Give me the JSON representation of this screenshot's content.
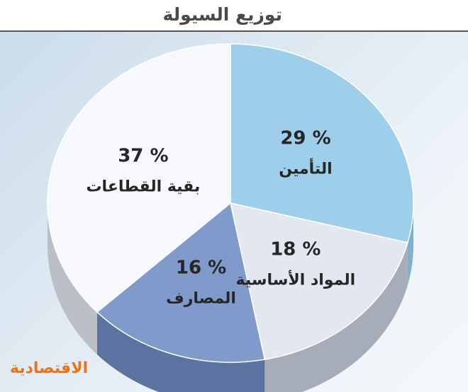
{
  "header": {
    "title": "توزيع السيولة"
  },
  "brand": {
    "name": "الاقتصادية",
    "color": "#e9731d"
  },
  "chart_data": {
    "type": "pie",
    "style": "3d",
    "title": "توزيع السيولة",
    "start_position": "top",
    "direction": "clockwise",
    "slices": [
      {
        "label": "التأمين",
        "value": 29,
        "value_label": "29 %",
        "color": "#9dcfea",
        "side_color": "#7fb0cd"
      },
      {
        "label": "المواد الأساسية",
        "value": 18,
        "value_label": "18 %",
        "color": "#e3e7ef",
        "side_color": "#a7adb8"
      },
      {
        "label": "المصارف",
        "value": 16,
        "value_label": "16 %",
        "color": "#7f9acb",
        "side_color": "#5c73a2"
      },
      {
        "label": "بقية القطاعات",
        "value": 37,
        "value_label": "37 %",
        "color": "#f6f8fb",
        "side_color": "#b9bec7"
      }
    ]
  }
}
